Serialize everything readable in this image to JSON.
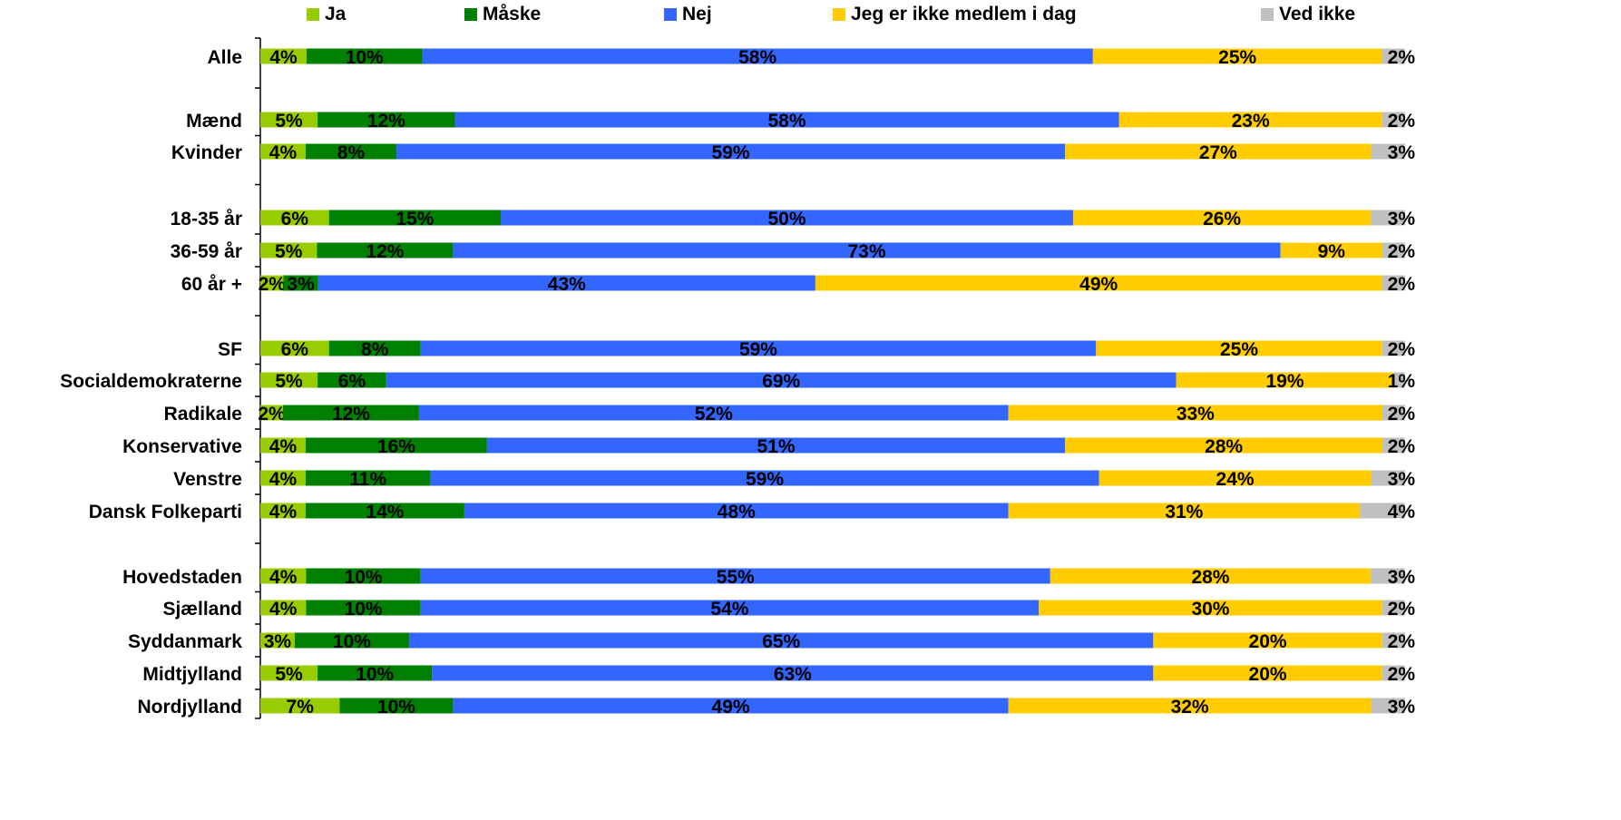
{
  "colors": {
    "ja": "#99cc00",
    "maaske": "#008000",
    "nej": "#3366ff",
    "ikke_medlem": "#ffcc00",
    "ved_ikke": "#c0c0c0"
  },
  "chart_data": {
    "type": "bar",
    "orientation": "horizontal",
    "stacked": true,
    "normalized": true,
    "title": "",
    "xlabel": "",
    "ylabel": "",
    "legend": {
      "placement": "top",
      "entries": [
        "Ja",
        "Måske",
        "Nej",
        "Jeg er ikke medlem i dag",
        "Ved ikke"
      ]
    },
    "categories": [
      "Alle",
      "Mænd",
      "Kvinder",
      "18-35 år",
      "36-59 år",
      "60 år +",
      "SF",
      "Socialdemokraterne",
      "Radikale",
      "Konservative",
      "Venstre",
      "Dansk Folkeparti",
      "Hovedstaden",
      "Sjælland",
      "Syddanmark",
      "Midtjylland",
      "Nordjylland"
    ],
    "groups": [
      [
        "Alle"
      ],
      [
        "Mænd",
        "Kvinder"
      ],
      [
        "18-35 år",
        "36-59 år",
        "60 år +"
      ],
      [
        "SF",
        "Socialdemokraterne",
        "Radikale",
        "Konservative",
        "Venstre",
        "Dansk Folkeparti"
      ],
      [
        "Hovedstaden",
        "Sjælland",
        "Syddanmark",
        "Midtjylland",
        "Nordjylland"
      ]
    ],
    "series": [
      {
        "name": "Ja",
        "color": "#99cc00",
        "values": [
          4,
          5,
          4,
          6,
          5,
          2,
          6,
          5,
          2,
          4,
          4,
          4,
          4,
          4,
          3,
          5,
          7
        ]
      },
      {
        "name": "Måske",
        "color": "#008000",
        "values": [
          10,
          12,
          8,
          15,
          12,
          3,
          8,
          6,
          12,
          16,
          11,
          14,
          10,
          10,
          10,
          10,
          10
        ]
      },
      {
        "name": "Nej",
        "color": "#3366ff",
        "values": [
          58,
          58,
          59,
          50,
          73,
          43,
          59,
          69,
          52,
          51,
          59,
          48,
          55,
          54,
          65,
          63,
          49
        ]
      },
      {
        "name": "Jeg er ikke medlem i dag",
        "color": "#ffcc00",
        "values": [
          25,
          23,
          27,
          26,
          9,
          49,
          25,
          19,
          33,
          28,
          24,
          31,
          28,
          30,
          20,
          20,
          32
        ]
      },
      {
        "name": "Ved ikke",
        "color": "#c0c0c0",
        "values": [
          2,
          2,
          3,
          3,
          2,
          2,
          2,
          1,
          2,
          2,
          3,
          4,
          3,
          2,
          2,
          2,
          3
        ]
      }
    ],
    "value_suffix": "%"
  }
}
